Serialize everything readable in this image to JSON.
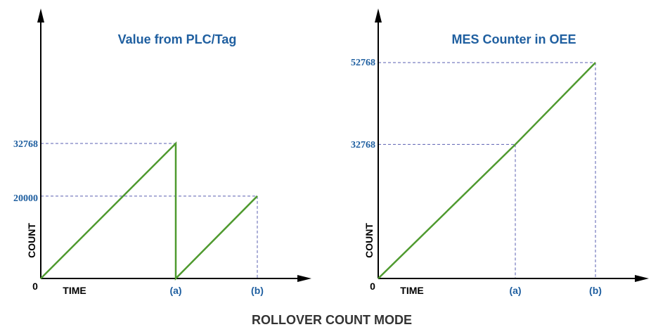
{
  "caption": "ROLLOVER COUNT MODE",
  "colors": {
    "line": "#4f9a2f",
    "guide": "#5a5fb0",
    "label": "#1f5fa0",
    "axis": "#000000"
  },
  "chart_data": [
    {
      "type": "line",
      "title": "Value from PLC/Tag",
      "xlabel": "TIME",
      "ylabel": "COUNT",
      "origin_label": "0",
      "x_tick_labels": [
        "(a)",
        "(b)"
      ],
      "y_tick_labels": [
        "32768",
        "20000"
      ],
      "series": [
        {
          "x": [
            "0",
            "(a)",
            "(a)",
            "(b)"
          ],
          "y": [
            0,
            32768,
            0,
            20000
          ]
        }
      ]
    },
    {
      "type": "line",
      "title": "MES Counter in OEE",
      "xlabel": "TIME",
      "ylabel": "COUNT",
      "origin_label": "0",
      "x_tick_labels": [
        "(a)",
        "(b)"
      ],
      "y_tick_labels": [
        "52768",
        "32768"
      ],
      "series": [
        {
          "x": [
            "0",
            "(a)",
            "(b)"
          ],
          "y": [
            0,
            32768,
            52768
          ]
        }
      ]
    }
  ]
}
